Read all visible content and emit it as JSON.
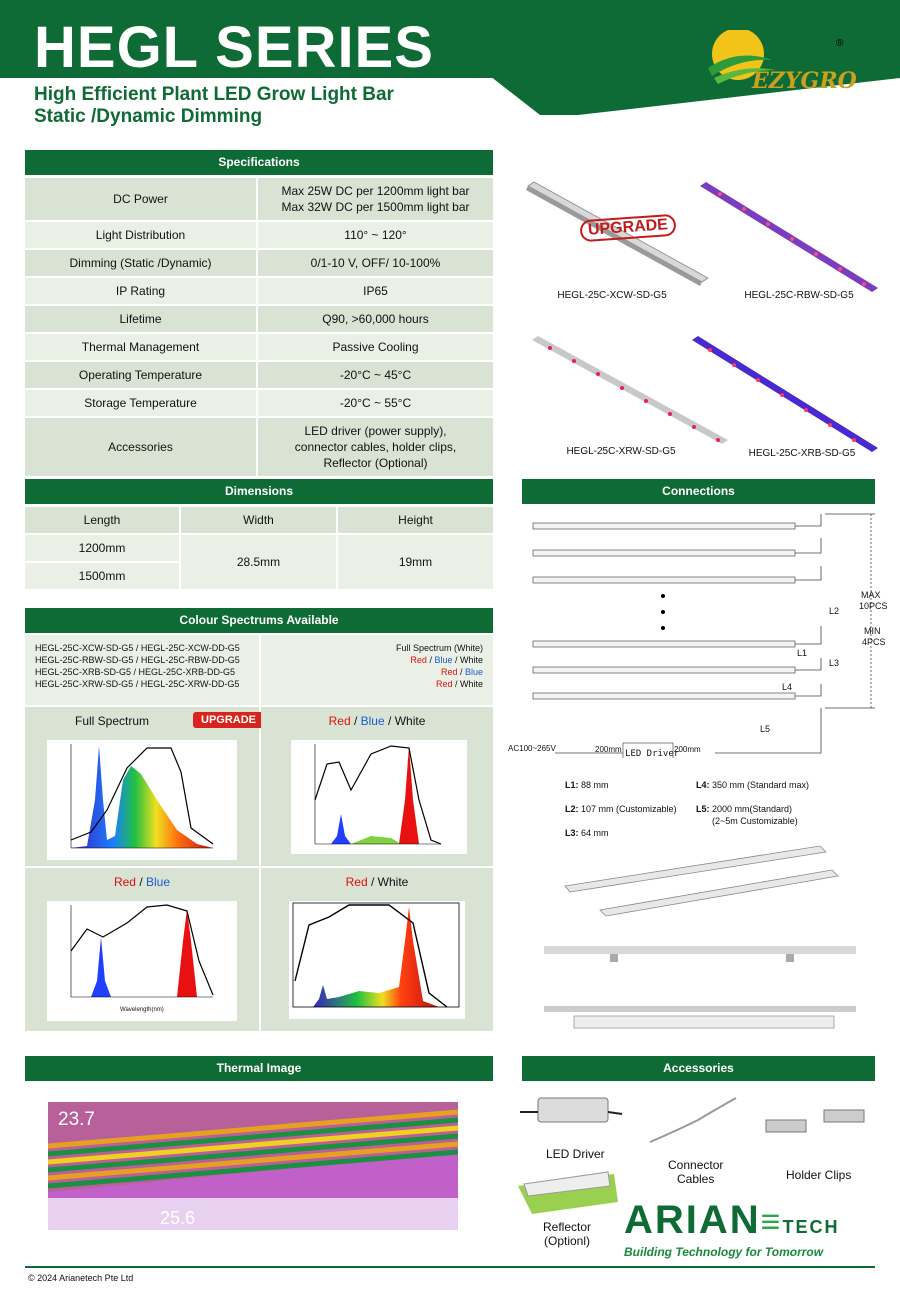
{
  "header": {
    "title": "HEGL SERIES",
    "subtitle_line1": "High Efficient Plant LED Grow Light Bar",
    "subtitle_line2": "Static /Dynamic Dimming",
    "brand": "EZYGRO",
    "registered": "®"
  },
  "specifications": {
    "heading": "Specifications",
    "rows": [
      {
        "label": "DC Power",
        "value_line1": "Max 25W DC per 1200mm light bar",
        "value_line2": "Max 32W DC per 1500mm light bar"
      },
      {
        "label": "Light Distribution",
        "value": "110° ~ 120°"
      },
      {
        "label": "Dimming (Static /Dynamic)",
        "value": "0/1-10 V, OFF/ 10-100%"
      },
      {
        "label": "IP Rating",
        "value": "IP65"
      },
      {
        "label": "Lifetime",
        "value": "Q90, >60,000 hours"
      },
      {
        "label": "Thermal Management",
        "value": "Passive Cooling"
      },
      {
        "label": "Operating Temperature",
        "value": "-20°C ~ 45°C"
      },
      {
        "label": "Storage Temperature",
        "value": "-20°C ~ 55°C"
      },
      {
        "label": "Accessories",
        "value_line1": "LED driver (power supply),",
        "value_line2": "connector cables, holder clips,",
        "value_line3": "Reflector (Optional)"
      }
    ]
  },
  "products": {
    "upgrade_stamp": "UPGRADE",
    "items": [
      "HEGL-25C-XCW-SD-G5",
      "HEGL-25C-RBW-SD-G5",
      "HEGL-25C-XRW-SD-G5",
      "HEGL-25C-XRB-SD-G5"
    ]
  },
  "dimensions": {
    "heading": "Dimensions",
    "headers": [
      "Length",
      "Width",
      "Height"
    ],
    "lengths": [
      "1200mm",
      "1500mm"
    ],
    "width": "28.5mm",
    "height": "19mm"
  },
  "connections": {
    "heading": "Connections",
    "max_label": "MAX",
    "max_value": "10PCS",
    "min_label": "MIN",
    "min_value": "4PCS",
    "tags": {
      "l1": "L1",
      "l2": "L2",
      "l3": "L3",
      "l4": "L4",
      "l5": "L5"
    },
    "ac_input": "AC100~265V",
    "seg1": "200mm",
    "seg2": "200mm",
    "driver_box": "LED Driver",
    "legend": {
      "l1_key": "L1:",
      "l1_val": "88   mm",
      "l2_key": "L2:",
      "l2_val": "107 mm  (Customizable)",
      "l3_key": "L3:",
      "l3_val": "64   mm",
      "l4_key": "L4:",
      "l4_val": "350 mm (Standard max)",
      "l5_key": "L5:",
      "l5_val": "2000 mm(Standard)",
      "l5_val2": "(2~5m Customizable)"
    }
  },
  "spectrums": {
    "heading": "Colour Spectrums Available",
    "models": [
      "HEGL-25C-XCW-SD-G5 / HEGL-25C-XCW-DD-G5",
      "HEGL-25C-RBW-SD-G5 / HEGL-25C-RBW-DD-G5",
      "HEGL-25C-XRB-SD-G5 / HEGL-25C-XRB-DD-G5",
      "HEGL-25C-XRW-SD-G5 / HEGL-25C-XRW-DD-G5"
    ],
    "names": {
      "full": "Full Spectrum (White)",
      "r": "Red",
      "b": "Blue",
      "w": "White",
      "sep": " / "
    },
    "panels": {
      "full_title": "Full Spectrum",
      "upgrade": "UPGRADE",
      "rbw_red": "Red",
      "rbw_blue": "Blue",
      "rbw_white": "White",
      "rb_red": "Red",
      "rb_blue": "Blue",
      "rw_red": "Red",
      "rw_white": "White"
    },
    "chart_a": {
      "x_ticks": [
        "380",
        "420",
        "460",
        "500",
        "540",
        "580",
        "620",
        "660",
        "700",
        "740",
        "780"
      ],
      "y_ticks": [
        "0.0000",
        "0.1000",
        "0.2000",
        "0.3000",
        "0.4000",
        "0.5000",
        "0.6000",
        "0.7000",
        "0.8000",
        "0.9000",
        "1.0000"
      ],
      "y2_ticks": [
        "0.0",
        "0.1",
        "0.2",
        "0.3",
        "0.4",
        "0.5",
        "0.6",
        "0.7",
        "0.8",
        "0.9",
        "1.0"
      ],
      "xlabel": "Wavelength(nm)"
    },
    "chart_b": {
      "x_ticks": [
        "380",
        "420",
        "460",
        "500",
        "540",
        "580",
        "620",
        "660",
        "700",
        "740",
        "780"
      ]
    }
  },
  "thermal": {
    "heading": "Thermal Image",
    "temp_high": "23.7",
    "temp_low": "25.6"
  },
  "accessories": {
    "heading": "Accessories",
    "driver": "LED Driver",
    "cables_line1": "Connector",
    "cables_line2": "Cables",
    "clips": "Holder Clips",
    "reflector_line1": "Reflector",
    "reflector_line2": "(Optionl)"
  },
  "partner": {
    "name_part1": "ARIAN",
    "name_part2": "TECH",
    "tagline": "Building Technology for Tomorrow"
  },
  "footer": {
    "copyright": "© 2024 Arianetech Pte Ltd"
  },
  "colors": {
    "brand_green": "#0f6b35",
    "row_dark": "#d9e3d3",
    "row_light": "#ebf0e7",
    "accent_red": "#e01010",
    "accent_blue": "#1a5bd6"
  }
}
